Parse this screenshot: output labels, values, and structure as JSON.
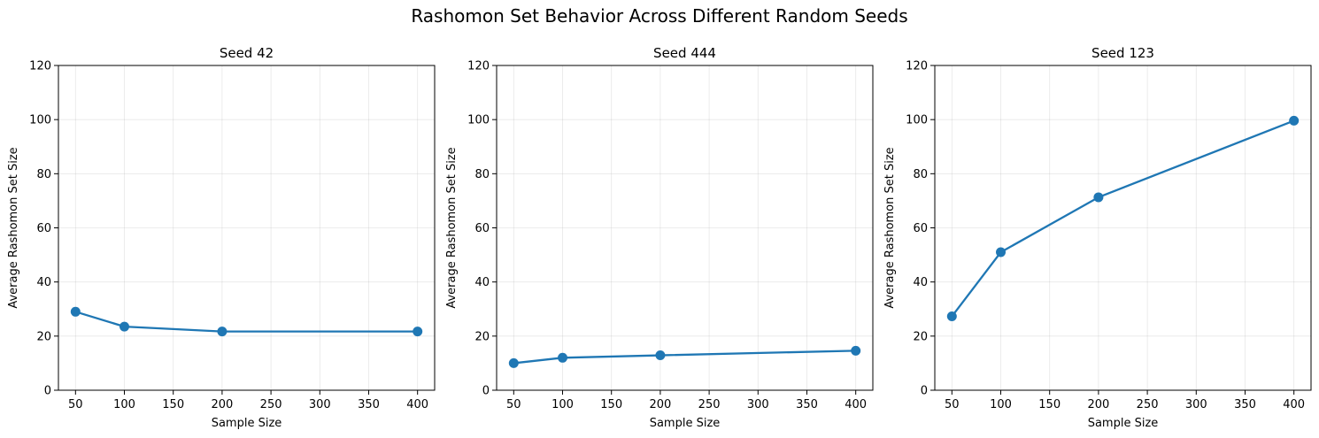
{
  "title": "Rashomon Set Behavior Across Different Random Seeds",
  "chart_data": [
    {
      "type": "line",
      "title": "Seed 42",
      "xlabel": "Sample Size",
      "ylabel": "Average Rashomon Set Size",
      "x": [
        50,
        100,
        200,
        400
      ],
      "series": [
        {
          "values": [
            29.0,
            23.5,
            21.7,
            21.7
          ]
        }
      ],
      "xlim": [
        32.5,
        417.5
      ],
      "ylim": [
        0,
        120
      ],
      "xticks": [
        50,
        100,
        150,
        200,
        250,
        300,
        350,
        400
      ],
      "yticks": [
        0,
        20,
        40,
        60,
        80,
        100,
        120
      ],
      "grid": true,
      "color": "#1f77b4"
    },
    {
      "type": "line",
      "title": "Seed 444",
      "xlabel": "Sample Size",
      "ylabel": "Average Rashomon Set Size",
      "x": [
        50,
        100,
        200,
        400
      ],
      "series": [
        {
          "values": [
            10.0,
            12.0,
            12.9,
            14.6
          ]
        }
      ],
      "xlim": [
        32.5,
        417.5
      ],
      "ylim": [
        0,
        120
      ],
      "xticks": [
        50,
        100,
        150,
        200,
        250,
        300,
        350,
        400
      ],
      "yticks": [
        0,
        20,
        40,
        60,
        80,
        100,
        120
      ],
      "grid": true,
      "color": "#1f77b4"
    },
    {
      "type": "line",
      "title": "Seed 123",
      "xlabel": "Sample Size",
      "ylabel": "Average Rashomon Set Size",
      "x": [
        50,
        100,
        200,
        400
      ],
      "series": [
        {
          "values": [
            27.3,
            51.0,
            71.3,
            99.6
          ]
        }
      ],
      "xlim": [
        32.5,
        417.5
      ],
      "ylim": [
        0,
        120
      ],
      "xticks": [
        50,
        100,
        150,
        200,
        250,
        300,
        350,
        400
      ],
      "yticks": [
        0,
        20,
        40,
        60,
        80,
        100,
        120
      ],
      "grid": true,
      "color": "#1f77b4"
    }
  ]
}
